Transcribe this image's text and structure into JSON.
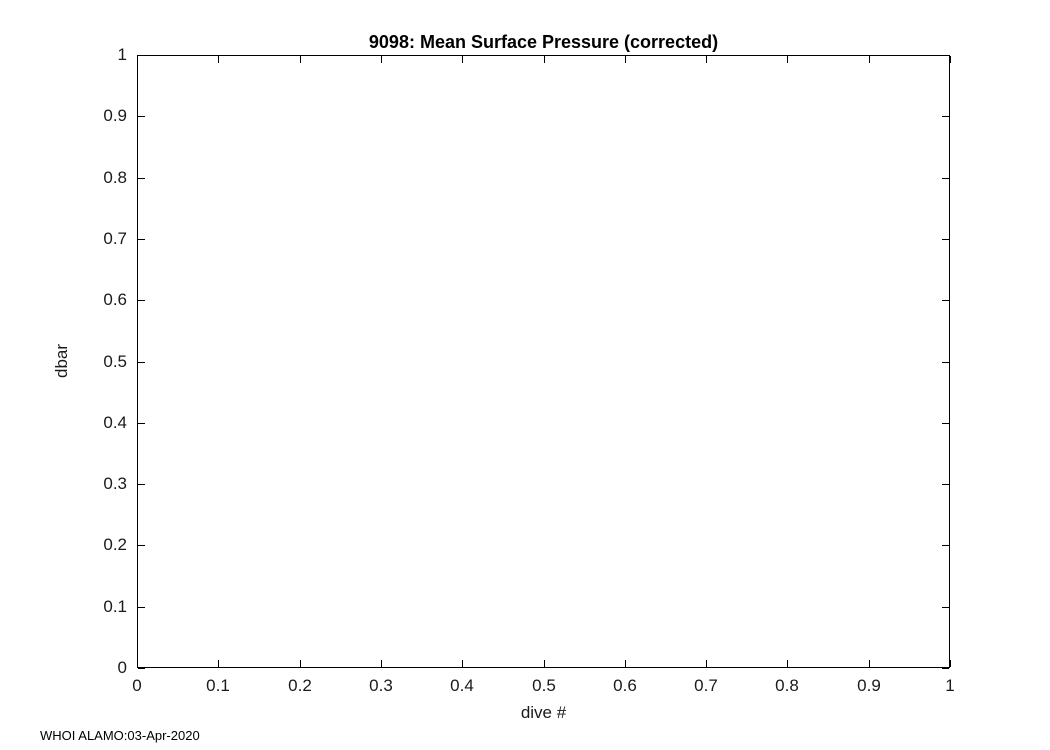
{
  "chart_data": {
    "type": "line",
    "title": "9098: Mean Surface Pressure (corrected)",
    "xlabel": "dive #",
    "ylabel": "dbar",
    "xlim": [
      0,
      1
    ],
    "ylim": [
      0,
      1
    ],
    "x_ticks": [
      0,
      0.1,
      0.2,
      0.3,
      0.4,
      0.5,
      0.6,
      0.7,
      0.8,
      0.9,
      1
    ],
    "x_tick_labels": [
      "0",
      "0.1",
      "0.2",
      "0.3",
      "0.4",
      "0.5",
      "0.6",
      "0.7",
      "0.8",
      "0.9",
      "1"
    ],
    "y_ticks": [
      0,
      0.1,
      0.2,
      0.3,
      0.4,
      0.5,
      0.6,
      0.7,
      0.8,
      0.9,
      1
    ],
    "y_tick_labels": [
      "0",
      "0.1",
      "0.2",
      "0.3",
      "0.4",
      "0.5",
      "0.6",
      "0.7",
      "0.8",
      "0.9",
      "1"
    ],
    "series": [],
    "grid": false,
    "legend": null,
    "annotation": "WHOI ALAMO:03-Apr-2020"
  }
}
